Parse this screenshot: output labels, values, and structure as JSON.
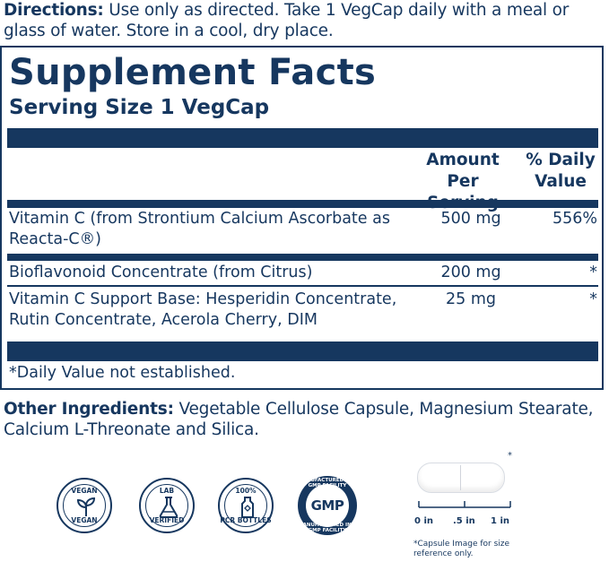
{
  "colors": {
    "navy": "#16375f"
  },
  "directions": {
    "label": "Directions:",
    "text": " Use only as directed. Take 1 VegCap daily with a meal or glass of water. Store in a cool, dry place."
  },
  "facts": {
    "title": "Supplement Facts",
    "serving": "Serving Size 1 VegCap",
    "col_amount_1": "Amount Per",
    "col_amount_2": "Serving",
    "col_dv_1": "% Daily",
    "col_dv_2": "Value",
    "rows": [
      {
        "name": "Vitamin C (from Strontium Calcium Ascorbate as Reacta-C®)",
        "amount": "500 mg",
        "dv": "556%"
      },
      {
        "name": "Bioflavonoid Concentrate (from Citrus)",
        "amount": "200 mg",
        "dv": "*"
      },
      {
        "name": "Vitamin C Support Base: Hesperidin Concentrate, Rutin Concentrate, Acerola Cherry, DIM",
        "amount": "25 mg",
        "dv": "*"
      }
    ],
    "footnote": "*Daily Value not established."
  },
  "other": {
    "label": "Other Ingredients:",
    "text": " Vegetable Cellulose Capsule, Magnesium Stearate, Calcium L-Threonate and Silica."
  },
  "badges": [
    {
      "top": "VEGAN",
      "bottom": "VEGAN",
      "icon": "sprout-icon"
    },
    {
      "top": "LAB",
      "bottom": "VERIFIED",
      "icon": "flask-icon"
    },
    {
      "top": "100%",
      "bottom": "PCR BOTTLES",
      "icon": "bottle-icon"
    }
  ],
  "gmp": {
    "label": "GMP",
    "arc_top": "MANUFACTURED IN A GMP FACILITY",
    "arc_bottom": "MANUFACTURED IN A GMP FACILITY"
  },
  "capsule": {
    "star": "*",
    "ruler_labels": [
      "0 in",
      ".5 in",
      "1 in"
    ],
    "note": "*Capsule Image for size reference only."
  }
}
